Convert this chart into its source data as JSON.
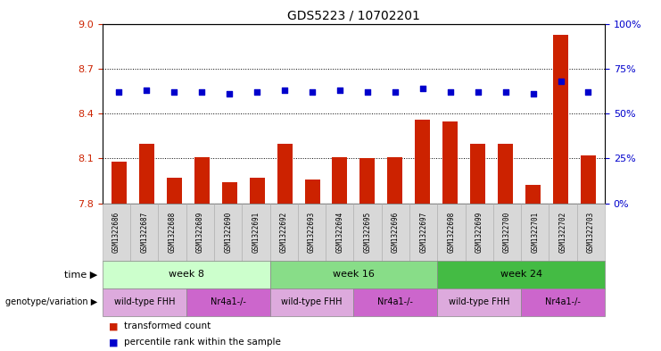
{
  "title": "GDS5223 / 10702201",
  "samples": [
    "GSM1322686",
    "GSM1322687",
    "GSM1322688",
    "GSM1322689",
    "GSM1322690",
    "GSM1322691",
    "GSM1322692",
    "GSM1322693",
    "GSM1322694",
    "GSM1322695",
    "GSM1322696",
    "GSM1322697",
    "GSM1322698",
    "GSM1322699",
    "GSM1322700",
    "GSM1322701",
    "GSM1322702",
    "GSM1322703"
  ],
  "transformed_counts": [
    8.08,
    8.2,
    7.97,
    8.11,
    7.94,
    7.97,
    8.2,
    7.96,
    8.11,
    8.1,
    8.11,
    8.36,
    8.35,
    8.2,
    8.2,
    7.92,
    8.93,
    8.12
  ],
  "percentile_ranks": [
    62,
    63,
    62,
    62,
    61,
    62,
    63,
    62,
    63,
    62,
    62,
    64,
    62,
    62,
    62,
    61,
    68,
    62
  ],
  "ylim_left": [
    7.8,
    9.0
  ],
  "ylim_right": [
    0,
    100
  ],
  "yticks_left": [
    7.8,
    8.1,
    8.4,
    8.7,
    9.0
  ],
  "yticks_right": [
    0,
    25,
    50,
    75,
    100
  ],
  "bar_color": "#cc2200",
  "dot_color": "#0000cc",
  "time_groups": [
    {
      "label": "week 8",
      "start": 0,
      "end": 5,
      "color": "#ccffcc"
    },
    {
      "label": "week 16",
      "start": 6,
      "end": 11,
      "color": "#88dd88"
    },
    {
      "label": "week 24",
      "start": 12,
      "end": 17,
      "color": "#44bb44"
    }
  ],
  "genotype_groups": [
    {
      "label": "wild-type FHH",
      "start": 0,
      "end": 2,
      "color": "#ddaadd"
    },
    {
      "label": "Nr4a1-/-",
      "start": 3,
      "end": 5,
      "color": "#cc66cc"
    },
    {
      "label": "wild-type FHH",
      "start": 6,
      "end": 8,
      "color": "#ddaadd"
    },
    {
      "label": "Nr4a1-/-",
      "start": 9,
      "end": 11,
      "color": "#cc66cc"
    },
    {
      "label": "wild-type FHH",
      "start": 12,
      "end": 14,
      "color": "#ddaadd"
    },
    {
      "label": "Nr4a1-/-",
      "start": 15,
      "end": 17,
      "color": "#cc66cc"
    }
  ],
  "sample_bg_color": "#d8d8d8",
  "sample_border_color": "#aaaaaa",
  "row_border_color": "#888888",
  "legend": [
    {
      "label": "transformed count",
      "color": "#cc2200"
    },
    {
      "label": "percentile rank within the sample",
      "color": "#0000cc"
    }
  ]
}
